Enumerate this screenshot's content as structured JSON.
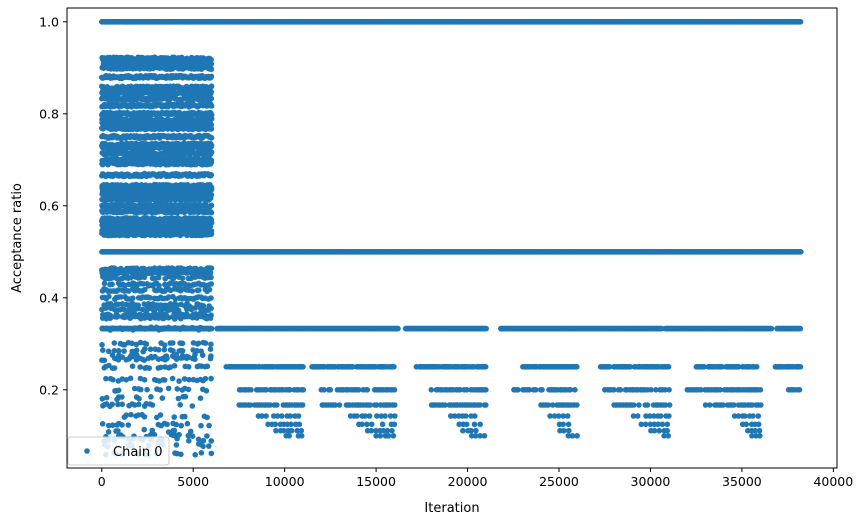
{
  "chart_data": {
    "type": "scatter",
    "title": "",
    "xlabel": "Iteration",
    "ylabel": "Acceptance ratio",
    "xlim": [
      -1900,
      40200
    ],
    "ylim": [
      0.03,
      1.03
    ],
    "xticks": [
      0,
      5000,
      10000,
      15000,
      20000,
      25000,
      30000,
      35000,
      40000
    ],
    "xtick_labels": [
      "0",
      "5000",
      "10000",
      "15000",
      "20000",
      "25000",
      "30000",
      "35000",
      "40000"
    ],
    "yticks": [
      0.2,
      0.4,
      0.6,
      0.8,
      1.0
    ],
    "ytick_labels": [
      "0.2",
      "0.4",
      "0.6",
      "0.8",
      "1.0"
    ],
    "grid": false,
    "legend_position": "bottom-left",
    "marker_color": "#1f77b4",
    "series": [
      {
        "name": "Chain 0",
        "x_range": [
          0,
          38200
        ],
        "bands": [
          {
            "y": 1.0,
            "segments": [
              [
                0,
                6000
              ],
              [
                6000,
                38200
              ]
            ],
            "density": "continuous"
          },
          {
            "y": 0.5,
            "segments": [
              [
                0,
                6000
              ],
              [
                6000,
                38200
              ]
            ],
            "density": "continuous"
          },
          {
            "y": 0.333,
            "segments": [
              [
                0,
                6000
              ],
              [
                6300,
                16200
              ],
              [
                16600,
                21000
              ],
              [
                21800,
                30600
              ],
              [
                30800,
                36600
              ],
              [
                36900,
                38200
              ]
            ],
            "density": "continuous"
          },
          {
            "y": 0.25,
            "segments": [
              [
                6800,
                11000
              ],
              [
                11400,
                16000
              ],
              [
                17200,
                21000
              ],
              [
                23000,
                26000
              ],
              [
                27200,
                31000
              ],
              [
                32500,
                35800
              ],
              [
                36800,
                38200
              ]
            ],
            "density": "dense"
          },
          {
            "y": 0.2,
            "segments": [
              [
                7500,
                11000
              ],
              [
                12000,
                16000
              ],
              [
                18000,
                21000
              ],
              [
                22500,
                26000
              ],
              [
                27500,
                31000
              ],
              [
                32000,
                36000
              ],
              [
                37500,
                38200
              ]
            ],
            "density": "medium"
          },
          {
            "y": 0.167,
            "segments": [
              [
                7500,
                11000
              ],
              [
                12000,
                16000
              ],
              [
                18000,
                21000
              ],
              [
                24000,
                26000
              ],
              [
                28000,
                31000
              ],
              [
                33000,
                36000
              ]
            ],
            "density": "medium"
          },
          {
            "y": 0.143,
            "segments": [
              [
                8500,
                11000
              ],
              [
                13500,
                16000
              ],
              [
                19000,
                21000
              ],
              [
                24500,
                25500
              ],
              [
                29000,
                31000
              ],
              [
                34500,
                36000
              ]
            ],
            "density": "sparse"
          },
          {
            "y": 0.125,
            "segments": [
              [
                9000,
                11000
              ],
              [
                14000,
                16000
              ],
              [
                19500,
                21000
              ],
              [
                25000,
                25500
              ],
              [
                29500,
                31000
              ],
              [
                35000,
                36000
              ]
            ],
            "density": "sparse"
          },
          {
            "y": 0.111,
            "segments": [
              [
                9500,
                11000
              ],
              [
                14500,
                16000
              ],
              [
                19500,
                20500
              ],
              [
                25000,
                25500
              ],
              [
                30000,
                31000
              ],
              [
                35000,
                36000
              ]
            ],
            "density": "sparse"
          },
          {
            "y": 0.1,
            "segments": [
              [
                10000,
                11000
              ],
              [
                15000,
                16000
              ],
              [
                20000,
                21000
              ],
              [
                25500,
                26000
              ],
              [
                30500,
                31000
              ],
              [
                35500,
                36000
              ]
            ],
            "density": "sparse"
          }
        ],
        "early_phase": {
          "x_range": [
            0,
            6000
          ],
          "y_levels": [
            0.9,
            0.91,
            0.92,
            0.88,
            0.857,
            0.846,
            0.833,
            0.818,
            0.8,
            0.786,
            0.778,
            0.769,
            0.75,
            0.733,
            0.727,
            0.714,
            0.7,
            0.692,
            0.667,
            0.643,
            0.636,
            0.625,
            0.615,
            0.6,
            0.588,
            0.571,
            0.563,
            0.556,
            0.545,
            0.538,
            0.462,
            0.455,
            0.444,
            0.429,
            0.417,
            0.4,
            0.385,
            0.375,
            0.364,
            0.357,
            0.333,
            0.3,
            0.286,
            0.273,
            0.267,
            0.25,
            0.222,
            0.2,
            0.182,
            0.167,
            0.143,
            0.125,
            0.111,
            0.1,
            0.091,
            0.08,
            0.06
          ],
          "pre_phase": {
            "y": 1.0,
            "x_range": [
              0,
              5000
            ],
            "density": "sparse"
          }
        }
      }
    ]
  }
}
